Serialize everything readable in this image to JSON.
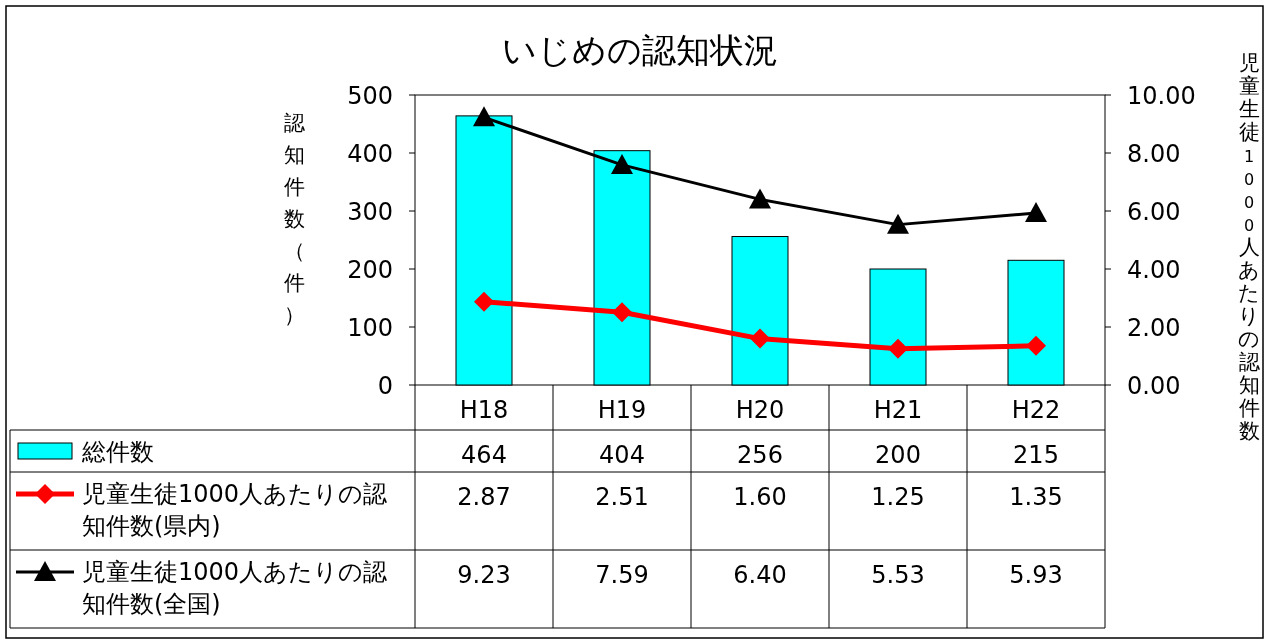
{
  "chart_data": {
    "type": "bar",
    "title": "いじめの認知状況",
    "ylabel": "認知件数（件）",
    "y2label": "児童生徒1000人あたりの認知件数",
    "categories": [
      "H18",
      "H19",
      "H20",
      "H21",
      "H22"
    ],
    "series": [
      {
        "name": "総件数",
        "type": "bar",
        "color": "#00ffff",
        "values": [
          464,
          404,
          256,
          200,
          215
        ],
        "value_labels": [
          "464",
          "404",
          "256",
          "200",
          "215"
        ]
      },
      {
        "name": "児童生徒1000人あたりの認知件数(県内)",
        "type": "line",
        "axis": "y2",
        "marker": "diamond",
        "color": "#ff0000",
        "values": [
          2.87,
          2.51,
          1.6,
          1.25,
          1.35
        ],
        "value_labels": [
          "2.87",
          "2.51",
          "1.60",
          "1.25",
          "1.35"
        ]
      },
      {
        "name": "児童生徒1000人あたりの認知件数(全国)",
        "type": "line",
        "axis": "y2",
        "marker": "triangle",
        "color": "#000000",
        "values": [
          9.23,
          7.59,
          6.4,
          5.53,
          5.93
        ],
        "value_labels": [
          "9.23",
          "7.59",
          "6.40",
          "5.53",
          "5.93"
        ]
      }
    ],
    "ylim": [
      0,
      500
    ],
    "yticks": [
      0,
      100,
      200,
      300,
      400,
      500
    ],
    "y2lim": [
      0,
      10
    ],
    "y2ticks": [
      {
        "value": 0,
        "label": "0.00"
      },
      {
        "value": 2,
        "label": "2.00"
      },
      {
        "value": 4,
        "label": "4.00"
      },
      {
        "value": 6,
        "label": "6.00"
      },
      {
        "value": 8,
        "label": "8.00"
      },
      {
        "value": 10,
        "label": "10.00"
      }
    ],
    "legend": "bottom",
    "grid": false
  }
}
